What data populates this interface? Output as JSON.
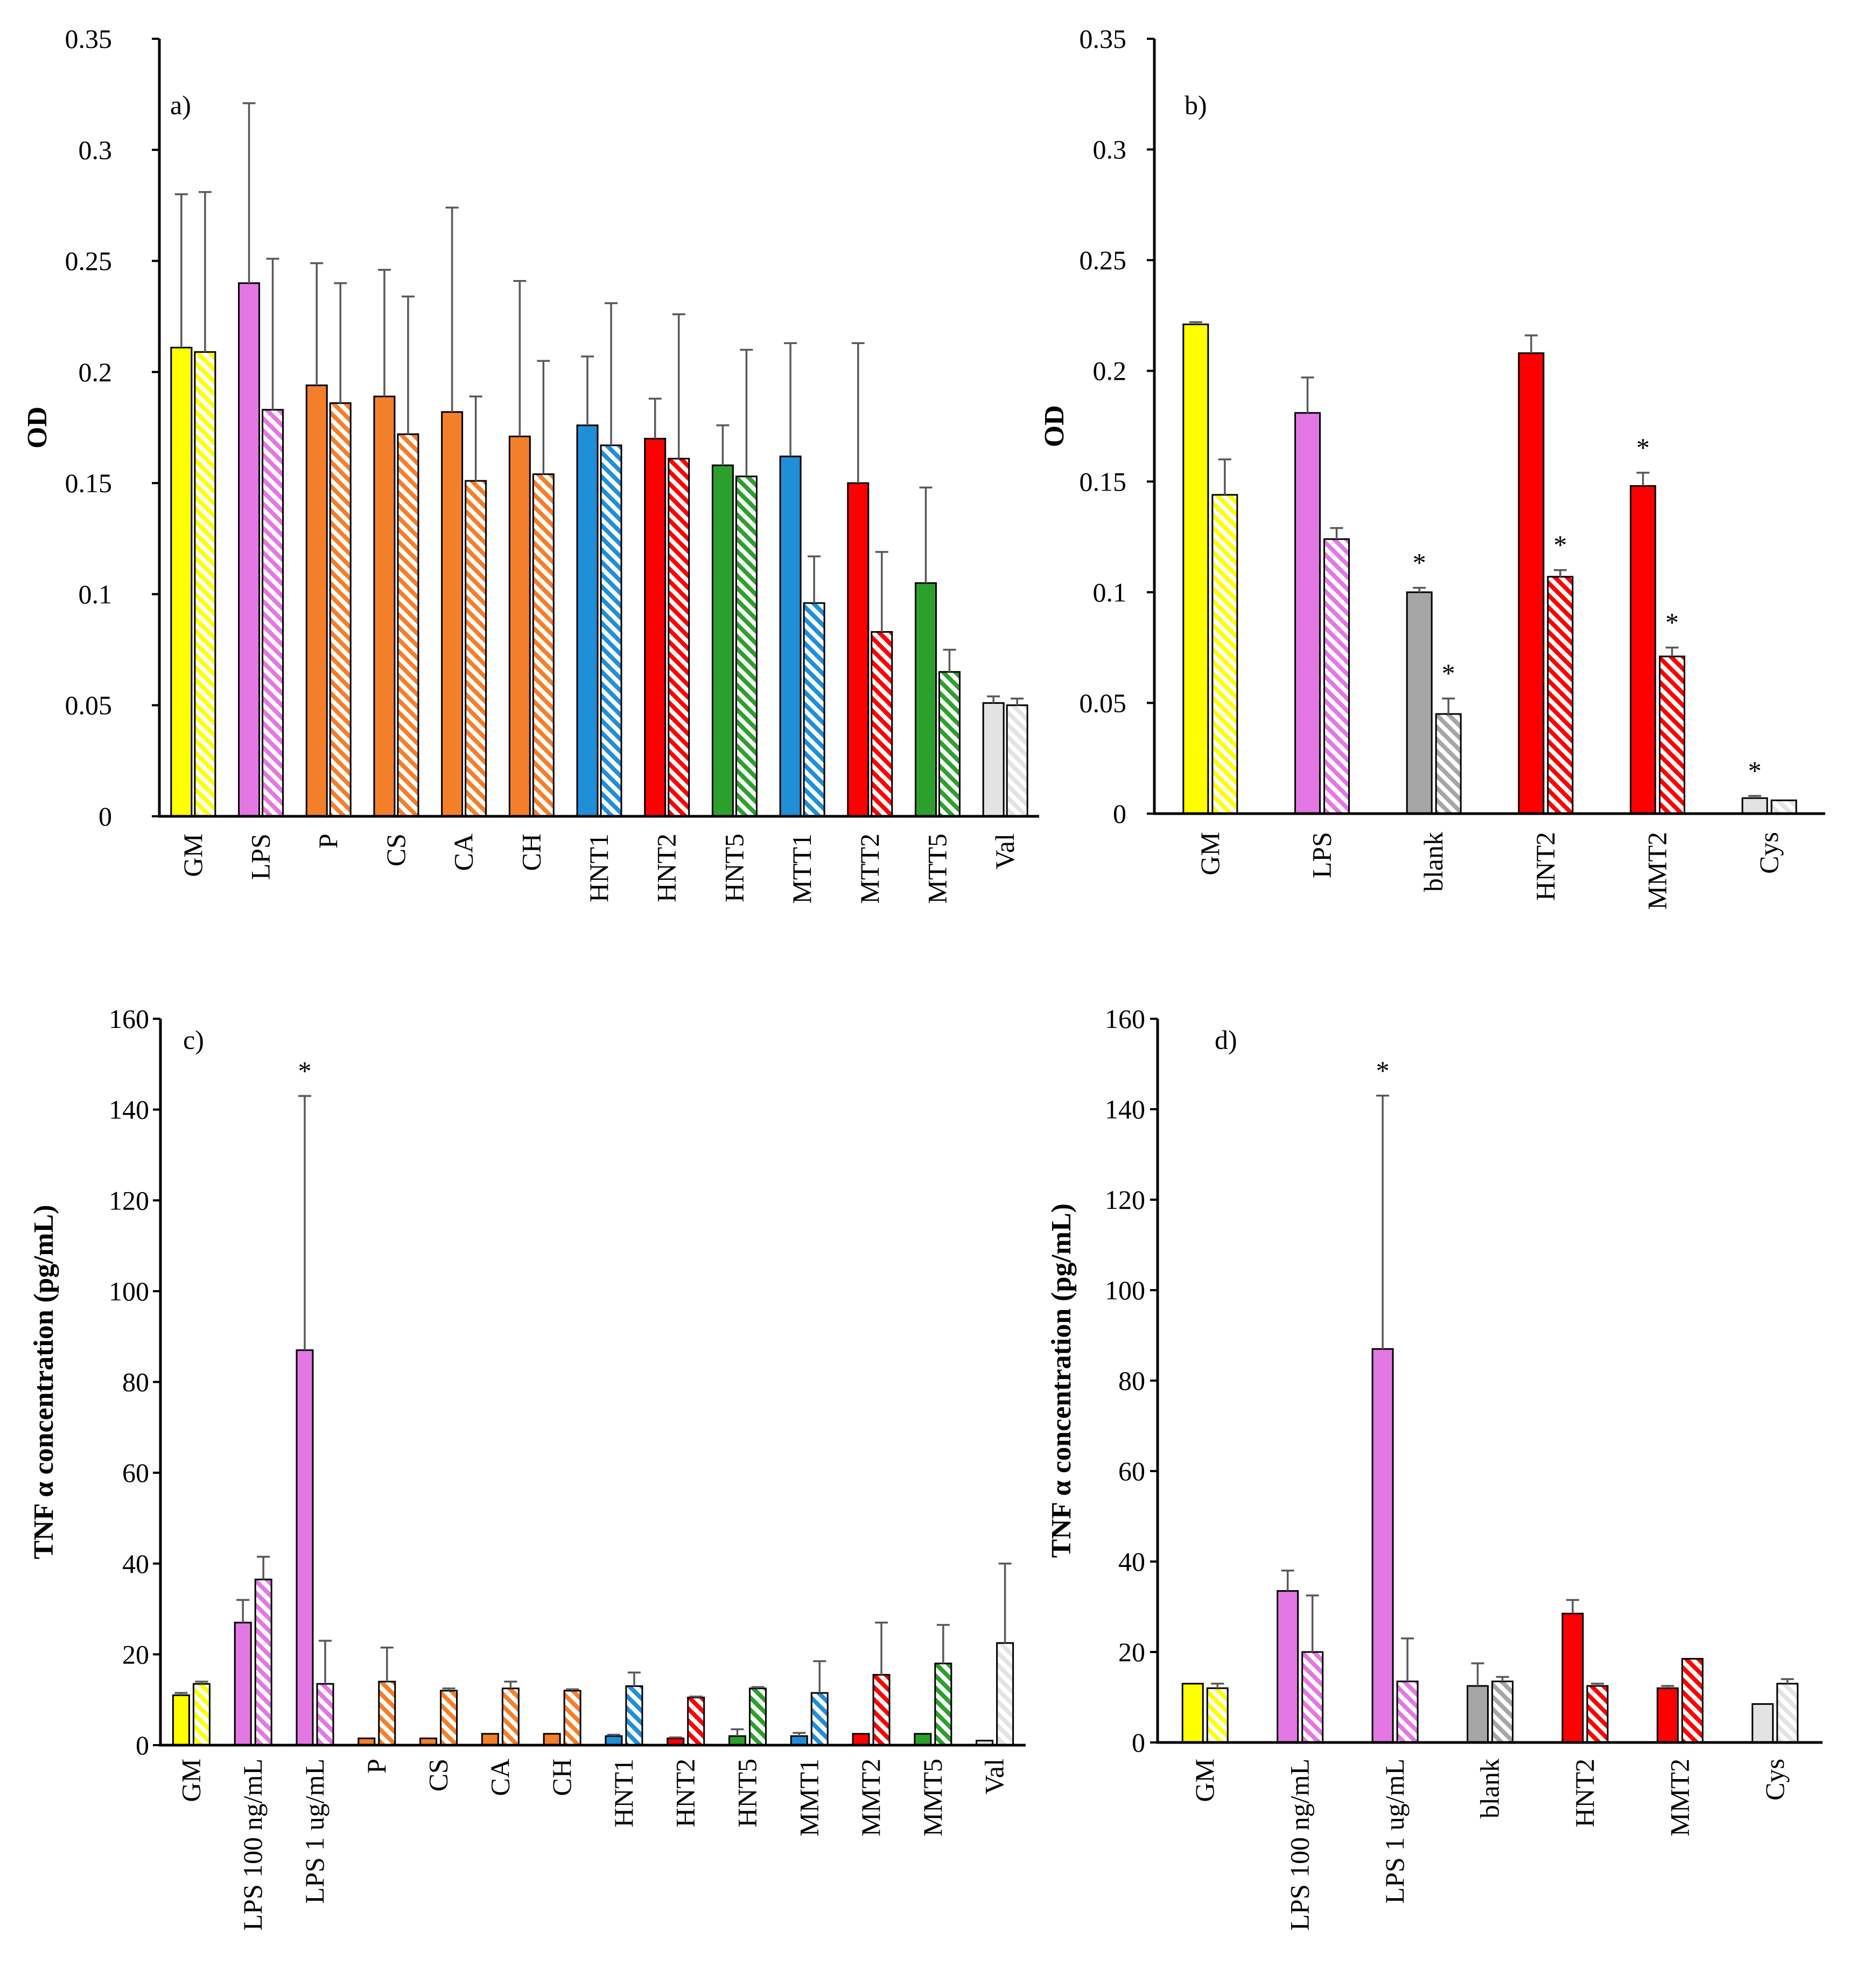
{
  "chart_data": [
    {
      "type": "bar",
      "panel": "a)",
      "ylabel": "OD",
      "ylim": [
        0,
        0.35
      ],
      "yticks": [
        "0",
        "0.05",
        "0.1",
        "0.15",
        "0.2",
        "0.25",
        "0.3",
        "0.35"
      ],
      "categories": [
        "GM",
        "LPS",
        "P",
        "CS",
        "CA",
        "CH",
        "HNT1",
        "HNT2",
        "HNT5",
        "MTT1",
        "MTT2",
        "MTT5",
        "Val"
      ],
      "colors": [
        "#ffff00",
        "#e377e3",
        "#f47f2a",
        "#f47f2a",
        "#f47f2a",
        "#f47f2a",
        "#1f8fd8",
        "#ff0000",
        "#2ca02c",
        "#1f8fd8",
        "#ff0000",
        "#2ca02c",
        "#e3e3e3"
      ],
      "series": [
        {
          "name": "solid",
          "pattern": "solid",
          "values": [
            0.211,
            0.24,
            0.194,
            0.189,
            0.182,
            0.171,
            0.176,
            0.17,
            0.158,
            0.162,
            0.15,
            0.105,
            0.051
          ],
          "errors": [
            0.069,
            0.081,
            0.055,
            0.057,
            0.092,
            0.07,
            0.031,
            0.018,
            0.018,
            0.051,
            0.063,
            0.043,
            0.003
          ]
        },
        {
          "name": "hatched",
          "pattern": "hatched",
          "values": [
            0.209,
            0.183,
            0.186,
            0.172,
            0.151,
            0.154,
            0.167,
            0.161,
            0.153,
            0.096,
            0.083,
            0.065,
            0.05
          ],
          "errors": [
            0.072,
            0.068,
            0.054,
            0.062,
            0.038,
            0.051,
            0.064,
            0.065,
            0.057,
            0.021,
            0.036,
            0.01,
            0.003
          ]
        }
      ],
      "stars": []
    },
    {
      "type": "bar",
      "panel": "b)",
      "ylabel": "OD",
      "ylim": [
        0,
        0.35
      ],
      "yticks": [
        "0",
        "0.05",
        "0.1",
        "0.15",
        "0.2",
        "0.25",
        "0.3",
        "0.35"
      ],
      "categories": [
        "GM",
        "LPS",
        "blank",
        "HNT2",
        "MMT2",
        "Cys"
      ],
      "colors": [
        "#ffff00",
        "#e377e3",
        "#a6a6a6",
        "#ff0000",
        "#ff0000",
        "#e3e3e3"
      ],
      "series": [
        {
          "name": "solid",
          "pattern": "solid",
          "values": [
            0.221,
            0.181,
            0.1,
            0.208,
            0.148,
            0.007
          ],
          "errors": [
            0.001,
            0.016,
            0.002,
            0.008,
            0.006,
            0.001
          ]
        },
        {
          "name": "hatched",
          "pattern": "hatched",
          "values": [
            0.144,
            0.124,
            0.045,
            0.107,
            0.071,
            0.006
          ],
          "errors": [
            0.016,
            0.005,
            0.007,
            0.003,
            0.004,
            0
          ]
        }
      ],
      "stars": [
        {
          "category": 2,
          "series": 0,
          "label": "*"
        },
        {
          "category": 2,
          "series": 1,
          "label": "*"
        },
        {
          "category": 3,
          "series": 1,
          "label": "*"
        },
        {
          "category": 4,
          "series": 0,
          "label": "*"
        },
        {
          "category": 4,
          "series": 1,
          "label": "*"
        },
        {
          "category": 5,
          "series": 0,
          "label": "*"
        }
      ]
    },
    {
      "type": "bar",
      "panel": "c)",
      "ylabel": "TNF α concentration (pg/mL)",
      "ylim": [
        0,
        160
      ],
      "yticks": [
        "0",
        "20",
        "40",
        "60",
        "80",
        "100",
        "120",
        "140",
        "160"
      ],
      "categories": [
        "GM",
        "LPS 100 ng/mL",
        "LPS   1 ug/mL",
        "P",
        "CS",
        "CA",
        "CH",
        "HNT1",
        "HNT2",
        "HNT5",
        "MMT1",
        "MMT2",
        "MMT5",
        "Val"
      ],
      "colors": [
        "#ffff00",
        "#e377e3",
        "#e377e3",
        "#f47f2a",
        "#f47f2a",
        "#f47f2a",
        "#f47f2a",
        "#1f8fd8",
        "#ff0000",
        "#2ca02c",
        "#1f8fd8",
        "#ff0000",
        "#2ca02c",
        "#e3e3e3"
      ],
      "series": [
        {
          "name": "solid",
          "pattern": "solid",
          "values": [
            11,
            27,
            87,
            1.5,
            1.5,
            2.5,
            2.5,
            2,
            1.5,
            2,
            2,
            2.5,
            2.5,
            1
          ],
          "errors": [
            0.5,
            5,
            56,
            0,
            0,
            0,
            0,
            0.3,
            0.2,
            1.5,
            0.7,
            0,
            0,
            0
          ]
        },
        {
          "name": "hatched",
          "pattern": "hatched",
          "values": [
            13.5,
            36.5,
            13.5,
            14,
            12,
            12.5,
            12,
            13,
            10.5,
            12.5,
            11.5,
            15.5,
            18,
            22.5
          ],
          "errors": [
            0.5,
            5,
            9.5,
            7.5,
            0.5,
            1.5,
            0.3,
            3,
            0.2,
            0.3,
            7,
            11.5,
            8.5,
            17.5
          ]
        }
      ],
      "stars": [
        {
          "category": 2,
          "series": 0,
          "label": "*"
        }
      ]
    },
    {
      "type": "bar",
      "panel": "d)",
      "ylabel": "TNF α concentration (pg/mL)",
      "ylim": [
        0,
        160
      ],
      "yticks": [
        "0",
        "20",
        "40",
        "60",
        "80",
        "100",
        "120",
        "140",
        "160"
      ],
      "categories": [
        "GM",
        "LPS 100 ng/mL",
        "LPS 1 ug/mL",
        "blank",
        "HNT2",
        "MMT2",
        "Cys"
      ],
      "colors": [
        "#ffff00",
        "#e377e3",
        "#e377e3",
        "#a6a6a6",
        "#ff0000",
        "#ff0000",
        "#e3e3e3"
      ],
      "series": [
        {
          "name": "solid",
          "pattern": "solid",
          "values": [
            13,
            33.5,
            87,
            12.5,
            28.5,
            12,
            8.5
          ],
          "errors": [
            0,
            4.5,
            56,
            5,
            3,
            0.5,
            0
          ]
        },
        {
          "name": "hatched",
          "pattern": "hatched",
          "values": [
            12,
            20,
            13.5,
            13.5,
            12.5,
            18.5,
            13
          ],
          "errors": [
            1,
            12.5,
            9.5,
            1,
            0.5,
            0,
            1
          ]
        }
      ],
      "stars": [
        {
          "category": 2,
          "series": 0,
          "label": "*"
        }
      ]
    }
  ]
}
